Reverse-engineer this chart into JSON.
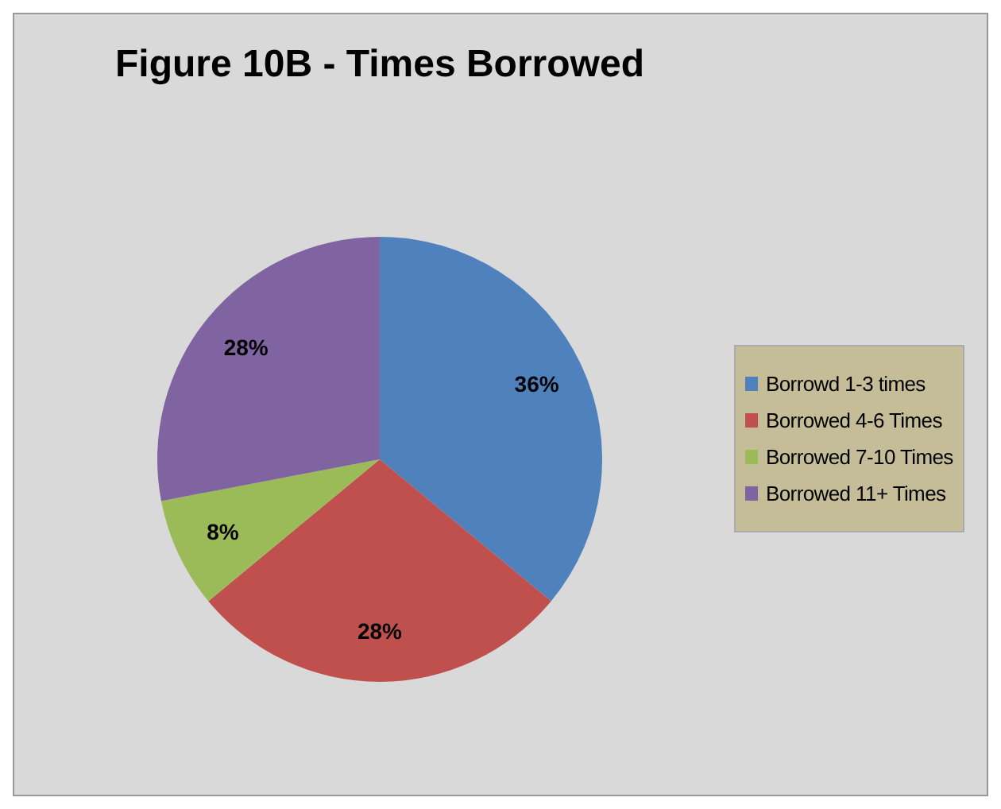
{
  "chart_data": {
    "type": "pie",
    "title": "Figure 10B - Times Borrowed",
    "categories": [
      "Borrowd 1-3 times",
      "Borrowed 4-6 Times",
      "Borrowed 7-10 Times",
      "Borrowed 11+ Times"
    ],
    "values": [
      36,
      28,
      8,
      28
    ],
    "colors": [
      "#4f81bd",
      "#c0504d",
      "#9bbb59",
      "#8064a2"
    ],
    "value_labels": [
      "36%",
      "28%",
      "8%",
      "28%"
    ],
    "legend": "right"
  }
}
